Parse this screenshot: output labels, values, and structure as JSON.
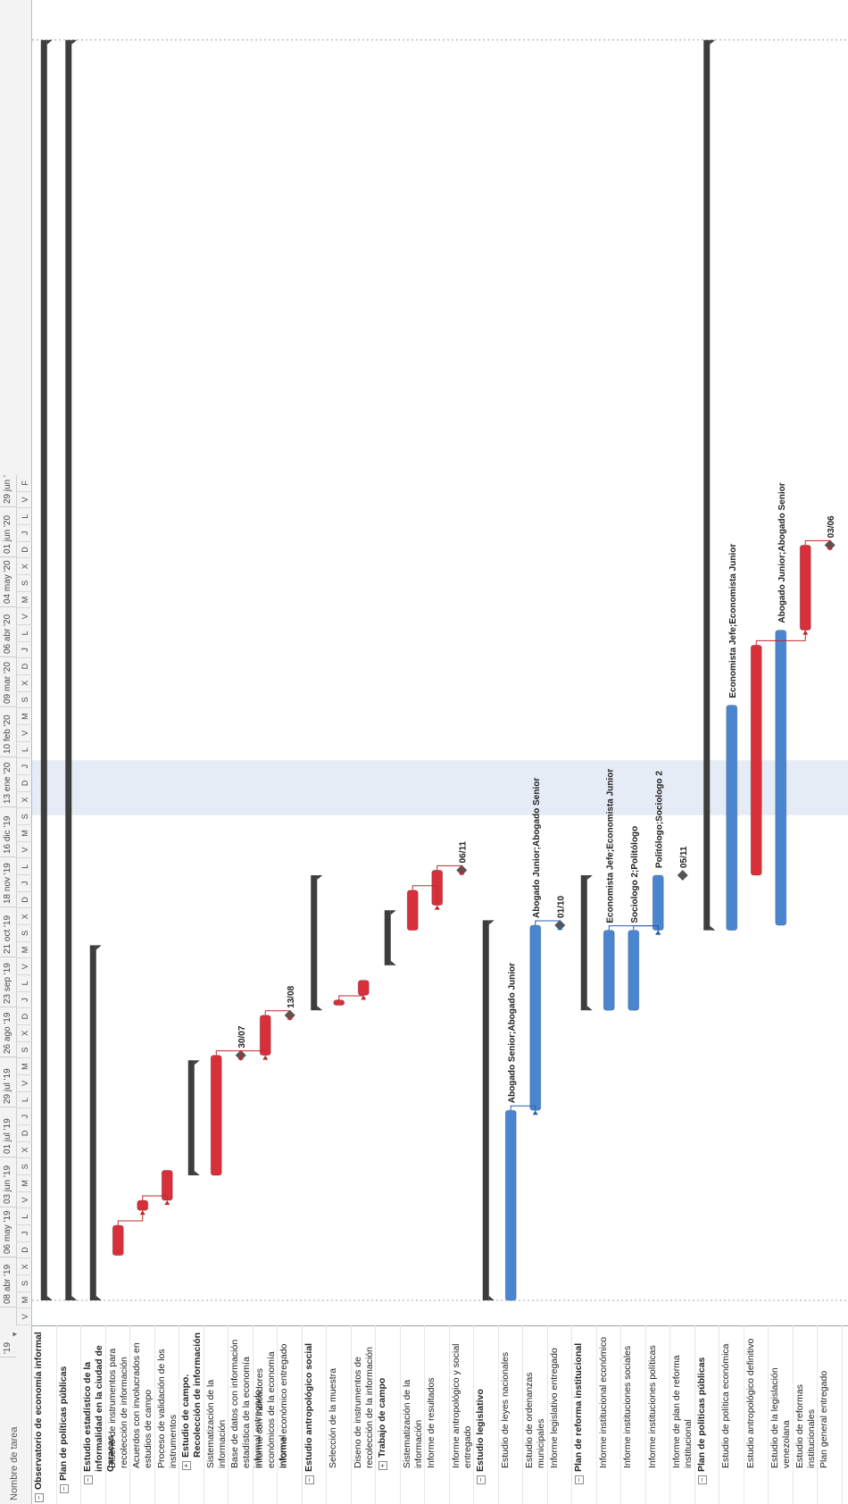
{
  "header": {
    "column_title": "Nombre de tarea",
    "dropdown_icon": "dropdown-arrow-icon"
  },
  "timescale": {
    "top": [
      "'19",
      "08 abr '19",
      "06 may '19",
      "03 jun '19",
      "01 jul '19",
      "29 jul '19",
      "26 ago '19",
      "23 sep '19",
      "21 oct '19",
      "18 nov '19",
      "16 dic '19",
      "13 ene '20",
      "10 feb '20",
      "09 mar '20",
      "06 abr '20",
      "04 may '20",
      "01 jun '20",
      "29 jun '"
    ],
    "bottom": [
      "V",
      "M",
      "S",
      "X",
      "D",
      "J",
      "L",
      "V",
      "M",
      "S",
      "X",
      "D",
      "J",
      "L",
      "V",
      "M",
      "S",
      "X",
      "D",
      "J",
      "L",
      "V",
      "M",
      "S",
      "X",
      "D",
      "J",
      "L",
      "V",
      "M",
      "S",
      "X",
      "D",
      "J",
      "L",
      "V",
      "M",
      "S",
      "X",
      "D",
      "J",
      "L",
      "V",
      "M",
      "S",
      "X",
      "D",
      "J",
      "L",
      "V",
      "F"
    ]
  },
  "tasks": [
    {
      "name": "Observatorio de economía informal",
      "level": 0,
      "summary": true,
      "toggle": "−",
      "start": 0.5,
      "end": 25.7,
      "kind": "summary-bar",
      "label": ""
    },
    {
      "name": "Plan de políticas públicas",
      "level": 1,
      "summary": true,
      "toggle": "−",
      "start": 0.5,
      "end": 25.7,
      "kind": "summary-bar",
      "label": ""
    },
    {
      "name": "Estudio estadístico de la informalidad en la ciudad de Caracas",
      "level": 2,
      "summary": true,
      "toggle": "−",
      "start": 0.5,
      "end": 7.6,
      "kind": "summary-bar",
      "label": ""
    },
    {
      "name": "Diseno de instrumentos para recolección de información",
      "level": 3,
      "summary": false,
      "start": 1.4,
      "end": 2.0,
      "kind": "critical",
      "label": ""
    },
    {
      "name": "Acuerdos con involucrados en estudios de campo",
      "level": 3,
      "summary": false,
      "start": 2.3,
      "end": 2.5,
      "kind": "critical",
      "label": ""
    },
    {
      "name": "Proceso de validación de los instrumentos",
      "level": 3,
      "summary": false,
      "start": 2.5,
      "end": 3.1,
      "kind": "critical",
      "label": ""
    },
    {
      "name": "Estudio de campo. Recolección de información",
      "level": 3,
      "summary": true,
      "toggle": "+",
      "start": 3.0,
      "end": 5.3,
      "kind": "summary-bar",
      "label": ""
    },
    {
      "name": "Sistematización de la información",
      "level": 3,
      "summary": false,
      "start": 3.0,
      "end": 5.4,
      "kind": "critical",
      "label": ""
    },
    {
      "name": "Base de datos con información estadística de la economía informal entregado",
      "level": 3,
      "summary": false,
      "start": 5.4,
      "end": 5.4,
      "kind": "milestone",
      "label": "30/07"
    },
    {
      "name": "Informe con indicadores económicos de la economía informal",
      "level": 3,
      "summary": false,
      "start": 5.4,
      "end": 6.2,
      "kind": "critical",
      "label": ""
    },
    {
      "name": "Informe económico entregado",
      "level": 3,
      "summary": false,
      "start": 6.2,
      "end": 6.2,
      "kind": "milestone",
      "label": "13/08"
    },
    {
      "name": "Estudio antropológico social",
      "level": 2,
      "summary": true,
      "toggle": "−",
      "start": 6.3,
      "end": 9.0,
      "kind": "summary-bar",
      "label": ""
    },
    {
      "name": "Selección de la muestra",
      "level": 3,
      "summary": false,
      "start": 6.4,
      "end": 6.5,
      "kind": "critical",
      "label": ""
    },
    {
      "name": "Diseno de instrumentos de recolección de la información",
      "level": 3,
      "summary": false,
      "start": 6.6,
      "end": 6.9,
      "kind": "critical",
      "label": ""
    },
    {
      "name": "Trabajo de campo",
      "level": 3,
      "summary": true,
      "toggle": "+",
      "start": 7.2,
      "end": 8.3,
      "kind": "summary-bar",
      "label": ""
    },
    {
      "name": "Sistematización de la información",
      "level": 3,
      "summary": false,
      "start": 7.9,
      "end": 8.7,
      "kind": "critical",
      "label": ""
    },
    {
      "name": "Informe de resultados",
      "level": 3,
      "summary": false,
      "start": 8.4,
      "end": 9.1,
      "kind": "critical",
      "label": ""
    },
    {
      "name": "Informe antropológico y social entregado",
      "level": 3,
      "summary": false,
      "start": 9.1,
      "end": 9.1,
      "kind": "milestone",
      "label": "06/11"
    },
    {
      "name": "Estudio legislativo",
      "level": 2,
      "summary": true,
      "toggle": "−",
      "start": 0.5,
      "end": 8.1,
      "kind": "summary-bar",
      "label": ""
    },
    {
      "name": "Estudio de leyes nacionales",
      "level": 3,
      "summary": false,
      "start": 0.5,
      "end": 4.3,
      "kind": "normal",
      "label": "Abogado Senior;Abogado Junior"
    },
    {
      "name": "Estudio de ordenanzas municipales",
      "level": 3,
      "summary": false,
      "start": 4.3,
      "end": 8.0,
      "kind": "normal",
      "label": "Abogado Junior;Abogado Senior"
    },
    {
      "name": "Informe legislativo entregado",
      "level": 3,
      "summary": false,
      "start": 8.0,
      "end": 8.0,
      "kind": "milestone",
      "label": "01/10"
    },
    {
      "name": "Plan de reforma institucional",
      "level": 2,
      "summary": true,
      "toggle": "−",
      "start": 6.3,
      "end": 9.0,
      "kind": "summary-bar",
      "label": ""
    },
    {
      "name": "Informe institucional económico",
      "level": 3,
      "summary": false,
      "start": 6.3,
      "end": 7.9,
      "kind": "normal",
      "label": "Economista Jefe;Economista Junior"
    },
    {
      "name": "Informe instituciones sociales",
      "level": 3,
      "summary": false,
      "start": 6.3,
      "end": 7.9,
      "kind": "normal",
      "label": "Sociologo 2;Politólogo"
    },
    {
      "name": "Informe instituciones políticas",
      "level": 3,
      "summary": false,
      "start": 7.9,
      "end": 9.0,
      "kind": "normal",
      "label": "Politólogo;Sociologo 2"
    },
    {
      "name": "Informe de plan de reforma institucional",
      "level": 3,
      "summary": false,
      "start": 9.0,
      "end": 9.0,
      "kind": "milestone",
      "label": "05/11"
    },
    {
      "name": "Plan de políticas públicas",
      "level": 2,
      "summary": true,
      "toggle": "−",
      "start": 7.9,
      "end": 25.7,
      "kind": "summary-bar",
      "label": ""
    },
    {
      "name": "Estudio de política económica",
      "level": 3,
      "summary": false,
      "start": 7.9,
      "end": 12.4,
      "kind": "normal",
      "label": "Economista Jefe;Economista Junior"
    },
    {
      "name": "Estudio antropológico definitivo",
      "level": 3,
      "summary": false,
      "start": 9.0,
      "end": 13.6,
      "kind": "critical",
      "label": ""
    },
    {
      "name": "Estudio de la legislación venezolana",
      "level": 3,
      "summary": false,
      "start": 8.0,
      "end": 13.9,
      "kind": "normal",
      "label": "Abogado Junior;Abogado Senior"
    },
    {
      "name": "Estudio de reformas institucionales",
      "level": 3,
      "summary": false,
      "start": 13.9,
      "end": 15.6,
      "kind": "critical",
      "label": ""
    },
    {
      "name": "Plan general entregado",
      "level": 3,
      "summary": false,
      "start": 15.6,
      "end": 15.6,
      "kind": "milestone",
      "label": "03/06"
    }
  ],
  "colors": {
    "critical": "#d8303a",
    "normal": "#4a86d0",
    "summary": "#3d3d3d",
    "link": "#c0282f",
    "link_normal": "#2d5fa8",
    "highlight": "#e6ecf5"
  }
}
